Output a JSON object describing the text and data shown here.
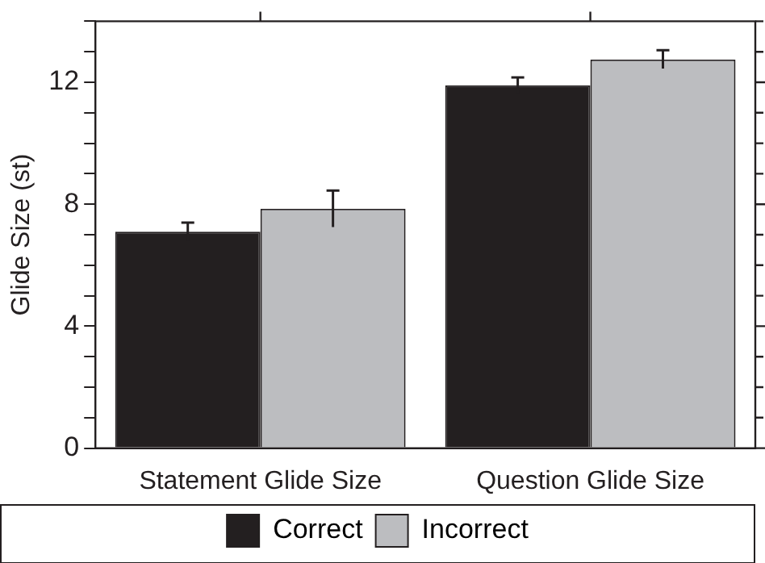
{
  "chart_data": {
    "type": "bar",
    "ylabel": "Glide Size (st)",
    "categories": [
      "Statement Glide Size",
      "Question Glide Size"
    ],
    "series": [
      {
        "name": "Correct",
        "color": "#231f20",
        "values": [
          7.1,
          11.9
        ],
        "errors": [
          0.3,
          0.26
        ]
      },
      {
        "name": "Incorrect",
        "color": "#bcbdc0",
        "values": [
          7.85,
          12.75
        ],
        "errors": [
          0.6,
          0.3
        ]
      }
    ],
    "ylim": [
      0,
      14
    ],
    "yticks": [
      0,
      {
        "value": 1,
        "label": null
      },
      {
        "value": 2,
        "label": null
      },
      {
        "value": 3,
        "label": null
      },
      4,
      {
        "value": 5,
        "label": null
      },
      {
        "value": 6,
        "label": null
      },
      {
        "value": 7,
        "label": null
      },
      8,
      {
        "value": 9,
        "label": null
      },
      {
        "value": 10,
        "label": null
      },
      {
        "value": 11,
        "label": null
      },
      12,
      {
        "value": 13,
        "label": null
      },
      {
        "value": 14,
        "label": null
      }
    ],
    "grid": false,
    "legend": "bottom"
  }
}
